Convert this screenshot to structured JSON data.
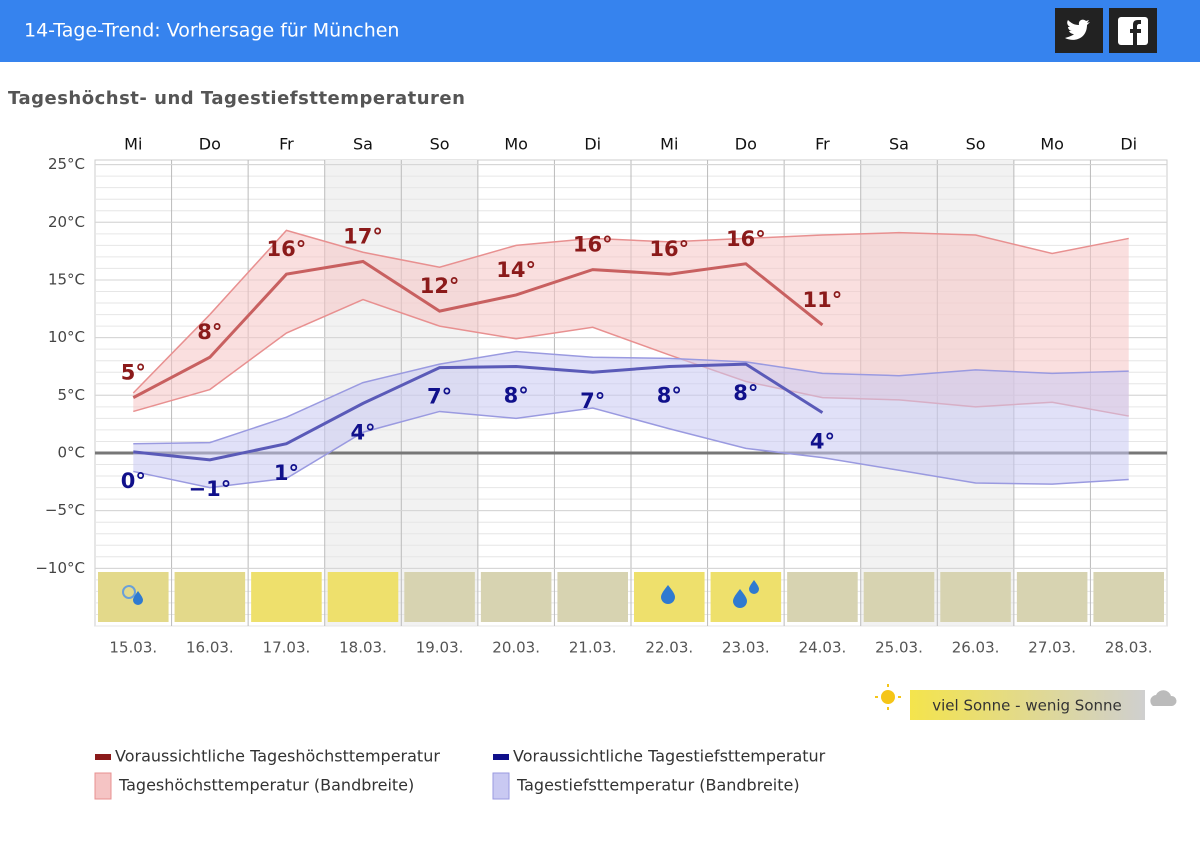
{
  "header": {
    "title": "14-Tage-Trend: Vorhersage für München"
  },
  "chart_data": {
    "type": "line",
    "title": "Tageshöchst- und Tagestiefsttemperaturen",
    "categories": [
      "Mi",
      "Do",
      "Fr",
      "Sa",
      "So",
      "Mo",
      "Di",
      "Mi",
      "Do",
      "Fr",
      "Sa",
      "So",
      "Mo",
      "Di"
    ],
    "dates": [
      "15.03.",
      "16.03.",
      "17.03.",
      "18.03.",
      "19.03.",
      "20.03.",
      "21.03.",
      "22.03.",
      "23.03.",
      "24.03.",
      "25.03.",
      "26.03.",
      "27.03.",
      "28.03."
    ],
    "tile_colors": [
      "#e3d98a",
      "#e3d98a",
      "#eee06c",
      "#eee06c",
      "#d7d3b1",
      "#d7d3b1",
      "#d7d3b1",
      "#eee06c",
      "#eee06c",
      "#d7d3b1",
      "#d7d3b1",
      "#d7d3b1",
      "#d7d3b1",
      "#d7d3b1"
    ],
    "ylim": [
      -15,
      25.4
    ],
    "yticks": [
      {
        "value": 25,
        "label": "25°C"
      },
      {
        "value": 20,
        "label": "20°C"
      },
      {
        "value": 15,
        "label": "15°C"
      },
      {
        "value": 10,
        "label": "10°C"
      },
      {
        "value": 5,
        "label": "5°C"
      },
      {
        "value": 0,
        "label": "0°C"
      },
      {
        "value": -5,
        "label": "−5°C"
      },
      {
        "value": -10,
        "label": "−10°C"
      }
    ],
    "grid": true,
    "series": [
      {
        "name": "Voraussichtliche Tageshöchsttemperatur",
        "color": "#c86060",
        "label_color": "#8b1a1a",
        "values": [
          4.8,
          8.3,
          15.5,
          16.6,
          12.3,
          13.7,
          15.9,
          15.5,
          16.4,
          11.1,
          null,
          null,
          null,
          null
        ],
        "value_labels": [
          "5°",
          "8°",
          "16°",
          "17°",
          "12°",
          "14°",
          "16°",
          "16°",
          "16°",
          "11°",
          null,
          null,
          null,
          null
        ]
      },
      {
        "name": "Voraussichtliche Tagestiefsttemperatur",
        "color": "#5a5ab8",
        "label_color": "#10108b",
        "values": [
          0.1,
          -0.6,
          0.8,
          4.3,
          7.4,
          7.5,
          7.0,
          7.5,
          7.7,
          3.5,
          null,
          null,
          null,
          null
        ],
        "value_labels": [
          "0°",
          "−1°",
          "1°",
          "4°",
          "7°",
          "8°",
          "7°",
          "8°",
          "8°",
          "4°",
          null,
          null,
          null,
          null
        ]
      },
      {
        "name": "Tageshöchsttemperatur (Bandbreite)",
        "type": "band",
        "color": "#f5c4c4",
        "edge_color": "#e89090",
        "upper": [
          5.2,
          12.0,
          19.3,
          17.4,
          16.1,
          18.0,
          18.6,
          18.3,
          18.6,
          18.9,
          19.1,
          18.9,
          17.3,
          18.6
        ],
        "lower": [
          3.6,
          5.5,
          10.4,
          13.3,
          11.0,
          9.9,
          10.9,
          8.5,
          6.2,
          4.8,
          4.6,
          4.0,
          4.4,
          3.2
        ]
      },
      {
        "name": "Tagestiefsttemperatur (Bandbreite)",
        "type": "band",
        "color": "#c9c9f2",
        "edge_color": "#9a9ae0",
        "upper": [
          0.8,
          0.9,
          3.1,
          6.1,
          7.7,
          8.8,
          8.3,
          8.2,
          7.9,
          6.9,
          6.7,
          7.2,
          6.9,
          7.1
        ],
        "lower": [
          -1.6,
          -3.0,
          -2.2,
          1.8,
          3.6,
          3.0,
          3.9,
          2.1,
          0.4,
          -0.4,
          -1.5,
          -2.6,
          -2.7,
          -2.3
        ]
      }
    ],
    "sun_scale": "viel Sonne - wenig Sonne"
  }
}
